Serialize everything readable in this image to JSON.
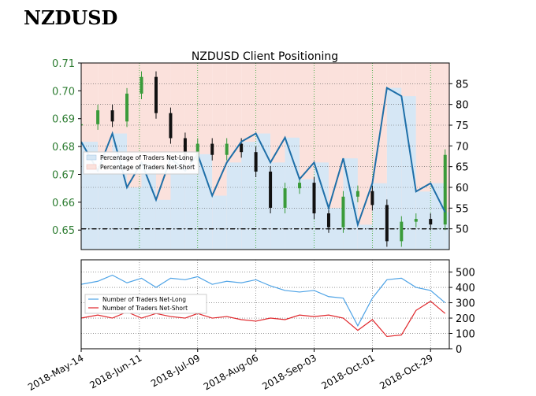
{
  "page": {
    "title": "NZDUSD"
  },
  "colors": {
    "price_up": "#3a9b3a",
    "price_down": "#111111",
    "net_long_line": "#1f6fa8",
    "net_long_fill": "#d6e7f5",
    "net_short_fill": "#fbe1dc",
    "long_traders": "#4ea3e6",
    "short_traders": "#e0262b",
    "left_axis_text": "#2e7d32",
    "grid": "#5a5a5a",
    "vgrid": "#2fa52f"
  },
  "chart_data": [
    {
      "type": "line",
      "title": "NZDUSD Client Positioning",
      "x_ticks": [
        "2018-May-14",
        "2018-Jun-11",
        "2018-Jul-09",
        "2018-Aug-06",
        "2018-Sep-03",
        "2018-Oct-01",
        "2018-Oct-29"
      ],
      "x_range": [
        "2018-May-14",
        "2018-Nov-07"
      ],
      "left_axis": {
        "label": "",
        "ylim": [
          0.643,
          0.71
        ],
        "ticks": [
          0.65,
          0.66,
          0.67,
          0.68,
          0.69,
          0.7,
          0.71
        ]
      },
      "right_axis": {
        "label": "",
        "ylim": [
          45,
          90
        ],
        "ticks": [
          50,
          55,
          60,
          65,
          70,
          75,
          80,
          85
        ]
      },
      "reference_line": 50,
      "legend": {
        "placement": "center-left",
        "entries": [
          "Percentage of Traders Net-Long",
          "Percentage of Traders Net-Short"
        ]
      },
      "series": [
        {
          "name": "Percentage of Traders Net-Long",
          "axis": "right",
          "points": [
            [
              "2018-05-14",
              71
            ],
            [
              "2018-05-22",
              64
            ],
            [
              "2018-05-29",
              73
            ],
            [
              "2018-06-05",
              60
            ],
            [
              "2018-06-12",
              66
            ],
            [
              "2018-06-19",
              57
            ],
            [
              "2018-06-26",
              67
            ],
            [
              "2018-07-03",
              64
            ],
            [
              "2018-07-09",
              68
            ],
            [
              "2018-07-16",
              58
            ],
            [
              "2018-07-23",
              66
            ],
            [
              "2018-07-30",
              71
            ],
            [
              "2018-08-06",
              73
            ],
            [
              "2018-08-13",
              66
            ],
            [
              "2018-08-20",
              72
            ],
            [
              "2018-08-27",
              62
            ],
            [
              "2018-09-03",
              66
            ],
            [
              "2018-09-10",
              55
            ],
            [
              "2018-09-17",
              67
            ],
            [
              "2018-09-24",
              51
            ],
            [
              "2018-10-01",
              61
            ],
            [
              "2018-10-08",
              84
            ],
            [
              "2018-10-15",
              82
            ],
            [
              "2018-10-22",
              59
            ],
            [
              "2018-10-29",
              61
            ],
            [
              "2018-11-05",
              54
            ]
          ]
        },
        {
          "name": "NZDUSD",
          "axis": "left",
          "points": [
            [
              "2018-05-14",
              0.688
            ],
            [
              "2018-05-22",
              0.693
            ],
            [
              "2018-05-29",
              0.689
            ],
            [
              "2018-06-05",
              0.699
            ],
            [
              "2018-06-12",
              0.705
            ],
            [
              "2018-06-19",
              0.692
            ],
            [
              "2018-06-26",
              0.683
            ],
            [
              "2018-07-03",
              0.675
            ],
            [
              "2018-07-09",
              0.681
            ],
            [
              "2018-07-16",
              0.677
            ],
            [
              "2018-07-23",
              0.681
            ],
            [
              "2018-07-30",
              0.678
            ],
            [
              "2018-08-06",
              0.671
            ],
            [
              "2018-08-13",
              0.658
            ],
            [
              "2018-08-20",
              0.665
            ],
            [
              "2018-08-27",
              0.667
            ],
            [
              "2018-09-03",
              0.656
            ],
            [
              "2018-09-10",
              0.651
            ],
            [
              "2018-09-17",
              0.662
            ],
            [
              "2018-09-24",
              0.664
            ],
            [
              "2018-10-01",
              0.659
            ],
            [
              "2018-10-08",
              0.646
            ],
            [
              "2018-10-15",
              0.653
            ],
            [
              "2018-10-22",
              0.654
            ],
            [
              "2018-10-29",
              0.652
            ],
            [
              "2018-11-05",
              0.677
            ]
          ]
        }
      ]
    },
    {
      "type": "line",
      "title": "",
      "right_axis": {
        "label": "",
        "ylim": [
          0,
          580
        ],
        "ticks": [
          0,
          100,
          200,
          300,
          400,
          500
        ]
      },
      "legend": {
        "placement": "center-left",
        "entries": [
          "Number of Traders Net-Long",
          "Number of Traders Net-Short"
        ]
      },
      "series": [
        {
          "name": "Number of Traders Net-Long",
          "points": [
            [
              "2018-05-14",
              420
            ],
            [
              "2018-05-22",
              440
            ],
            [
              "2018-05-29",
              480
            ],
            [
              "2018-06-05",
              430
            ],
            [
              "2018-06-12",
              460
            ],
            [
              "2018-06-19",
              400
            ],
            [
              "2018-06-26",
              460
            ],
            [
              "2018-07-03",
              450
            ],
            [
              "2018-07-09",
              470
            ],
            [
              "2018-07-16",
              420
            ],
            [
              "2018-07-23",
              440
            ],
            [
              "2018-07-30",
              430
            ],
            [
              "2018-08-06",
              450
            ],
            [
              "2018-08-13",
              410
            ],
            [
              "2018-08-20",
              380
            ],
            [
              "2018-08-27",
              370
            ],
            [
              "2018-09-03",
              380
            ],
            [
              "2018-09-10",
              340
            ],
            [
              "2018-09-17",
              330
            ],
            [
              "2018-09-24",
              150
            ],
            [
              "2018-10-01",
              330
            ],
            [
              "2018-10-08",
              450
            ],
            [
              "2018-10-15",
              460
            ],
            [
              "2018-10-22",
              400
            ],
            [
              "2018-10-29",
              380
            ],
            [
              "2018-11-05",
              300
            ]
          ]
        },
        {
          "name": "Number of Traders Net-Short",
          "points": [
            [
              "2018-05-14",
              200
            ],
            [
              "2018-05-22",
              220
            ],
            [
              "2018-05-29",
              200
            ],
            [
              "2018-06-05",
              240
            ],
            [
              "2018-06-12",
              200
            ],
            [
              "2018-06-19",
              230
            ],
            [
              "2018-06-26",
              210
            ],
            [
              "2018-07-03",
              200
            ],
            [
              "2018-07-09",
              230
            ],
            [
              "2018-07-16",
              200
            ],
            [
              "2018-07-23",
              210
            ],
            [
              "2018-07-30",
              190
            ],
            [
              "2018-08-06",
              180
            ],
            [
              "2018-08-13",
              200
            ],
            [
              "2018-08-20",
              190
            ],
            [
              "2018-08-27",
              220
            ],
            [
              "2018-09-03",
              210
            ],
            [
              "2018-09-10",
              220
            ],
            [
              "2018-09-17",
              200
            ],
            [
              "2018-09-24",
              120
            ],
            [
              "2018-10-01",
              190
            ],
            [
              "2018-10-08",
              80
            ],
            [
              "2018-10-15",
              90
            ],
            [
              "2018-10-22",
              250
            ],
            [
              "2018-10-29",
              310
            ],
            [
              "2018-11-05",
              230
            ]
          ]
        }
      ]
    }
  ]
}
